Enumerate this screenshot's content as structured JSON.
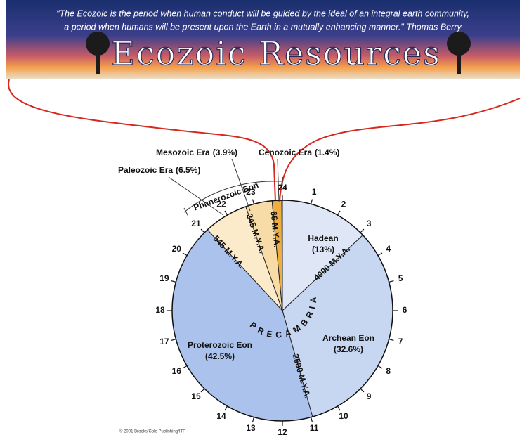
{
  "header": {
    "quote_line1": "\"The Ecozoic is the period when human conduct will be guided by the ideal of an integral earth community,",
    "quote_line2": "a period when humans will be present upon the Earth in a mutually enhancing manner.\"  Thomas Berry",
    "title": "Ecozoic Resources"
  },
  "chart_data": {
    "type": "pie",
    "categories": [
      "Hadean",
      "Archean Eon",
      "Proterozoic Eon",
      "Paleozoic Era",
      "Mesozoic Era",
      "Cenozoic Era"
    ],
    "values": [
      13,
      32.6,
      42.5,
      6.5,
      3.9,
      1.4
    ],
    "value_labels": [
      "(13%)",
      "(32.6%)",
      "(42.5%)",
      "(6.5%)",
      "(3.9%)",
      "(1.4%)"
    ],
    "colors": [
      "#dfe7f7",
      "#c8d7f1",
      "#abc3ec",
      "#fcebcb",
      "#f7dca8",
      "#efae3e"
    ],
    "ticks": [
      1,
      2,
      3,
      4,
      5,
      6,
      7,
      8,
      9,
      10,
      11,
      12,
      13,
      14,
      15,
      16,
      17,
      18,
      19,
      20,
      21,
      22,
      23,
      24
    ],
    "boundary_labels": [
      "4000 M.Y.A.",
      "2500 M.Y.A.",
      "545 M.Y.A.",
      "245 M.Y.A.",
      "66 M.Y.A."
    ],
    "annotations": [
      "Phanerozoic Eon",
      "PRECAMBRIAN"
    ]
  },
  "footer": {
    "credit": "© 2001 Brooks/Cole Publishing/ITP"
  }
}
